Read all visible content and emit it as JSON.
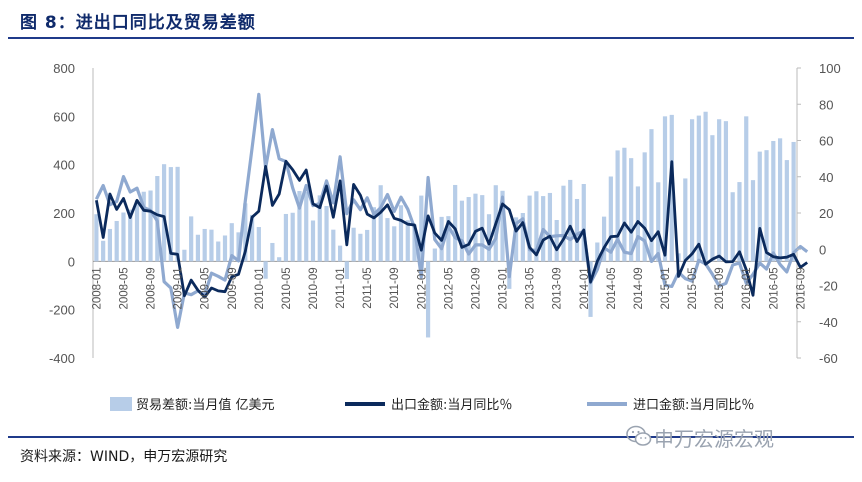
{
  "title": "图 8：进出口同比及贸易差额",
  "source": "资料来源：WIND，申万宏源研究",
  "watermark": "申万宏源宏观",
  "chart_data": {
    "type": "bar+line",
    "y_left": {
      "min": -400,
      "max": 800,
      "ticks": [
        -400,
        -200,
        0,
        200,
        400,
        600,
        800
      ]
    },
    "y_right": {
      "min": -60,
      "max": 100,
      "ticks": [
        -60,
        -40,
        -20,
        0,
        20,
        40,
        60,
        80,
        100
      ]
    },
    "x_tick_labels": [
      "2008-01",
      "2008-05",
      "2008-09",
      "2009-01",
      "2009-05",
      "2009-09",
      "2010-01",
      "2010-05",
      "2010-09",
      "2011-01",
      "2011-05",
      "2011-09",
      "2012-01",
      "2012-05",
      "2012-09",
      "2013-01",
      "2013-05",
      "2013-09",
      "2014-01",
      "2014-05",
      "2014-09",
      "2015-01",
      "2015-05",
      "2015-09",
      "2016-01",
      "2016-05",
      "2016-09"
    ],
    "legend": [
      {
        "name": "贸易差额:当月值 亿美元",
        "kind": "bar",
        "color": "#b7cde8"
      },
      {
        "name": "出口金额:当月同比％",
        "kind": "line",
        "color": "#0b2a5c"
      },
      {
        "name": "进口金额:当月同比％",
        "kind": "line",
        "color": "#8fa9d0"
      }
    ],
    "series": [
      {
        "name": "贸易差额:当月值 亿美元",
        "axis": "left",
        "values": [
          195,
          85,
          134,
          167,
          202,
          214,
          252,
          288,
          293,
          353,
          402,
          390,
          391,
          48,
          186,
          110,
          134,
          131,
          82,
          107,
          158,
          120,
          240,
          192,
          142,
          -72,
          76,
          17,
          196,
          201,
          291,
          287,
          169,
          273,
          229,
          131,
          65,
          -73,
          139,
          114,
          130,
          224,
          315,
          179,
          145,
          232,
          170,
          152,
          272,
          -315,
          53,
          184,
          187,
          316,
          251,
          266,
          280,
          274,
          195,
          315,
          292,
          -114,
          182,
          200,
          272,
          290,
          270,
          283,
          171,
          313,
          337,
          258,
          320,
          -230,
          78,
          185,
          351,
          459,
          470,
          427,
          310,
          451,
          547,
          327,
          600,
          606,
          33,
          343,
          588,
          603,
          619,
          522,
          588,
          580,
          286,
          328,
          600,
          336,
          454,
          460,
          498,
          509,
          419,
          494
        ]
      },
      {
        "name": "出口金额:当月同比％",
        "axis": "right",
        "values": [
          27,
          6.5,
          30.5,
          22,
          28,
          17.5,
          27,
          21.5,
          21,
          19,
          18,
          -2.3,
          -2.8,
          -25.7,
          -17,
          -22.6,
          -26.4,
          -21.4,
          -23,
          -23.4,
          -15.2,
          -13.8,
          -1.2,
          17.7,
          21,
          45.7,
          24.2,
          30.5,
          48.5,
          43.9,
          38,
          43.7,
          25,
          22.9,
          34.9,
          17.7,
          37.7,
          2.4,
          35.8,
          29.8,
          19.4,
          17.3,
          20.4,
          24.5,
          17.1,
          15.9,
          13.8,
          13.4,
          -0.5,
          18.4,
          8.9,
          4.9,
          15.3,
          11.3,
          1,
          2.7,
          9.9,
          11.6,
          2.9,
          14.1,
          25,
          21.8,
          10,
          14.7,
          1,
          -3.1,
          5.1,
          7.2,
          -0.3,
          5.6,
          12.7,
          4.3,
          10.6,
          -18.1,
          -6.6,
          0.9,
          7,
          7.2,
          14.5,
          9.4,
          15.3,
          11.6,
          4.7,
          9.7,
          -3.3,
          48.3,
          -15,
          -6.2,
          -2.5,
          2.8,
          -8.3,
          -5.5,
          -3.7,
          -6.9,
          -6.8,
          -1.4,
          -11.2,
          -25.4,
          11.5,
          -1.8,
          -4.1,
          -4.8,
          -4.4,
          -2.8,
          -10,
          -7.3
        ]
      },
      {
        "name": "进口金额:当月同比％",
        "axis": "right",
        "values": [
          27.6,
          35.2,
          24.6,
          26.4,
          40.1,
          31.6,
          33.7,
          23.1,
          21.4,
          15.6,
          -17.9,
          -21.3,
          -43.1,
          -24.1,
          -25.1,
          -23,
          -25.2,
          -13.2,
          -14.9,
          -17,
          -3.5,
          -6.4,
          26.7,
          55.9,
          85.5,
          44.8,
          66,
          49.9,
          48.4,
          33.8,
          22.7,
          35.2,
          24.1,
          25.3,
          37.7,
          25.6,
          51,
          19.6,
          27.3,
          21.8,
          28.4,
          19.3,
          22.9,
          30.2,
          20.9,
          28.7,
          22.1,
          11.8,
          -15.3,
          39.6,
          5.3,
          0.3,
          12.7,
          6.3,
          4.7,
          -2.6,
          2.4,
          2.4,
          0,
          6,
          28.8,
          -15.2,
          14.1,
          16.8,
          -0.3,
          -0.7,
          10.9,
          7,
          7.4,
          7.6,
          5.3,
          8.3,
          10,
          -18.5,
          -11.3,
          0.8,
          -1.6,
          5.5,
          -1.6,
          -2.4,
          7,
          4.6,
          -6.7,
          -2.4,
          -19.9,
          -20.5,
          -12.7,
          -16.2,
          -17.6,
          -6.1,
          -8.1,
          -13.8,
          -20.4,
          -18.8,
          -8.7,
          -7.6,
          -18.8,
          -13.8,
          -7.6,
          -10.9,
          -2,
          -8.4,
          -12.5,
          -1.9,
          1.5,
          -1.4
        ]
      }
    ]
  }
}
